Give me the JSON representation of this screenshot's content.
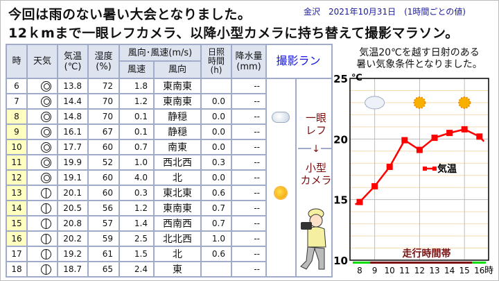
{
  "title": {
    "line1": "今回は雨のない暑い大会となりました。",
    "line2": "12ｋmまで一眼レフカメラ、以降小型カメラに持ち替えて撮影マラソン。",
    "meta": "金沢　2021年10月31日　(1時間ごとの値)"
  },
  "table": {
    "headers": {
      "hour": "時",
      "weather": "天気",
      "temp": "気温\n(℃)",
      "humidity": "湿度\n(%)",
      "wind": "風向･風速(m/s)",
      "wind_speed": "風速",
      "wind_dir": "風向",
      "sunshine": "日照\n時間\n(h)",
      "precip": "降水量\n(mm)"
    },
    "rows": [
      {
        "hour": "6",
        "weather": "clear",
        "temp": "13.8",
        "humidity": "72",
        "wind_speed": "1.8",
        "wind_dir": "東南東",
        "sunshine": "",
        "precip": "--",
        "highlight": false
      },
      {
        "hour": "7",
        "weather": "clear",
        "temp": "14.4",
        "humidity": "70",
        "wind_speed": "1.2",
        "wind_dir": "東南東",
        "sunshine": "0.0",
        "precip": "--",
        "highlight": false
      },
      {
        "hour": "8",
        "weather": "clear",
        "temp": "14.8",
        "humidity": "70",
        "wind_speed": "0.1",
        "wind_dir": "静穏",
        "sunshine": "0.0",
        "precip": "--",
        "highlight": true
      },
      {
        "hour": "9",
        "weather": "clear",
        "temp": "16.1",
        "humidity": "67",
        "wind_speed": "0.1",
        "wind_dir": "静穏",
        "sunshine": "0.0",
        "precip": "--",
        "highlight": true
      },
      {
        "hour": "10",
        "weather": "clear",
        "temp": "17.7",
        "humidity": "60",
        "wind_speed": "0.7",
        "wind_dir": "南東",
        "sunshine": "0.0",
        "precip": "--",
        "highlight": true
      },
      {
        "hour": "11",
        "weather": "clear",
        "temp": "19.9",
        "humidity": "52",
        "wind_speed": "1.0",
        "wind_dir": "西北西",
        "sunshine": "0.3",
        "precip": "--",
        "highlight": true
      },
      {
        "hour": "12",
        "weather": "clear",
        "temp": "19.1",
        "humidity": "60",
        "wind_speed": "4.0",
        "wind_dir": "北",
        "sunshine": "0.0",
        "precip": "--",
        "highlight": true
      },
      {
        "hour": "13",
        "weather": "fair",
        "temp": "20.1",
        "humidity": "60",
        "wind_speed": "0.3",
        "wind_dir": "東北東",
        "sunshine": "0.6",
        "precip": "--",
        "highlight": true
      },
      {
        "hour": "14",
        "weather": "fair",
        "temp": "20.5",
        "humidity": "56",
        "wind_speed": "1.2",
        "wind_dir": "東南東",
        "sunshine": "0.7",
        "precip": "--",
        "highlight": true
      },
      {
        "hour": "15",
        "weather": "fair",
        "temp": "20.8",
        "humidity": "57",
        "wind_speed": "1.4",
        "wind_dir": "西南西",
        "sunshine": "0.7",
        "precip": "--",
        "highlight": true
      },
      {
        "hour": "16",
        "weather": "fair",
        "temp": "20.2",
        "humidity": "59",
        "wind_speed": "2.5",
        "wind_dir": "北北西",
        "sunshine": "1.0",
        "precip": "--",
        "highlight": true
      },
      {
        "hour": "17",
        "weather": "fair",
        "temp": "19.2",
        "humidity": "61",
        "wind_speed": "1.5",
        "wind_dir": "北",
        "sunshine": "0.6",
        "precip": "--",
        "highlight": false
      },
      {
        "hour": "18",
        "weather": "fair",
        "temp": "18.7",
        "humidity": "65",
        "wind_speed": "2.4",
        "wind_dir": "東",
        "sunshine": "",
        "precip": "--",
        "highlight": false
      }
    ]
  },
  "photo_run": {
    "header": "撮影ラン",
    "camera1": "一眼\nレフ",
    "arrow": "↓",
    "camera2": "小型\nカメラ",
    "icons": [
      "cloud-icon",
      "sun-icon"
    ]
  },
  "chart_data": {
    "type": "line",
    "title": "気温20℃を越す日射のある\n暑い気象条件となりました。",
    "ylabel": "℃",
    "xlabel": "時",
    "ylim": [
      10,
      25
    ],
    "yticks": [
      "10",
      "15",
      "20",
      "25"
    ],
    "xticks": [
      "8",
      "9",
      "10",
      "11",
      "12",
      "13",
      "14",
      "15",
      "16"
    ],
    "grid": true,
    "legend": "center-right",
    "series": [
      {
        "name": "気温",
        "color": "#ff0000",
        "x": [
          7.7,
          8,
          9,
          10,
          11,
          12,
          13,
          14,
          15,
          16,
          16.3
        ],
        "values": [
          14.6,
          14.8,
          16.1,
          17.7,
          19.9,
          19.1,
          20.1,
          20.5,
          20.8,
          20.2,
          19.8
        ]
      }
    ],
    "weather_icons": [
      {
        "x": 9,
        "icon": "cloud-icon"
      },
      {
        "x": 12,
        "icon": "sun-icon"
      },
      {
        "x": 15,
        "icon": "sun-icon"
      }
    ],
    "run_band": {
      "label": "走行時間帯",
      "start": 8.7,
      "end": 15.5,
      "color": "#7a0d0d",
      "outside_color": "#00dd00"
    }
  }
}
